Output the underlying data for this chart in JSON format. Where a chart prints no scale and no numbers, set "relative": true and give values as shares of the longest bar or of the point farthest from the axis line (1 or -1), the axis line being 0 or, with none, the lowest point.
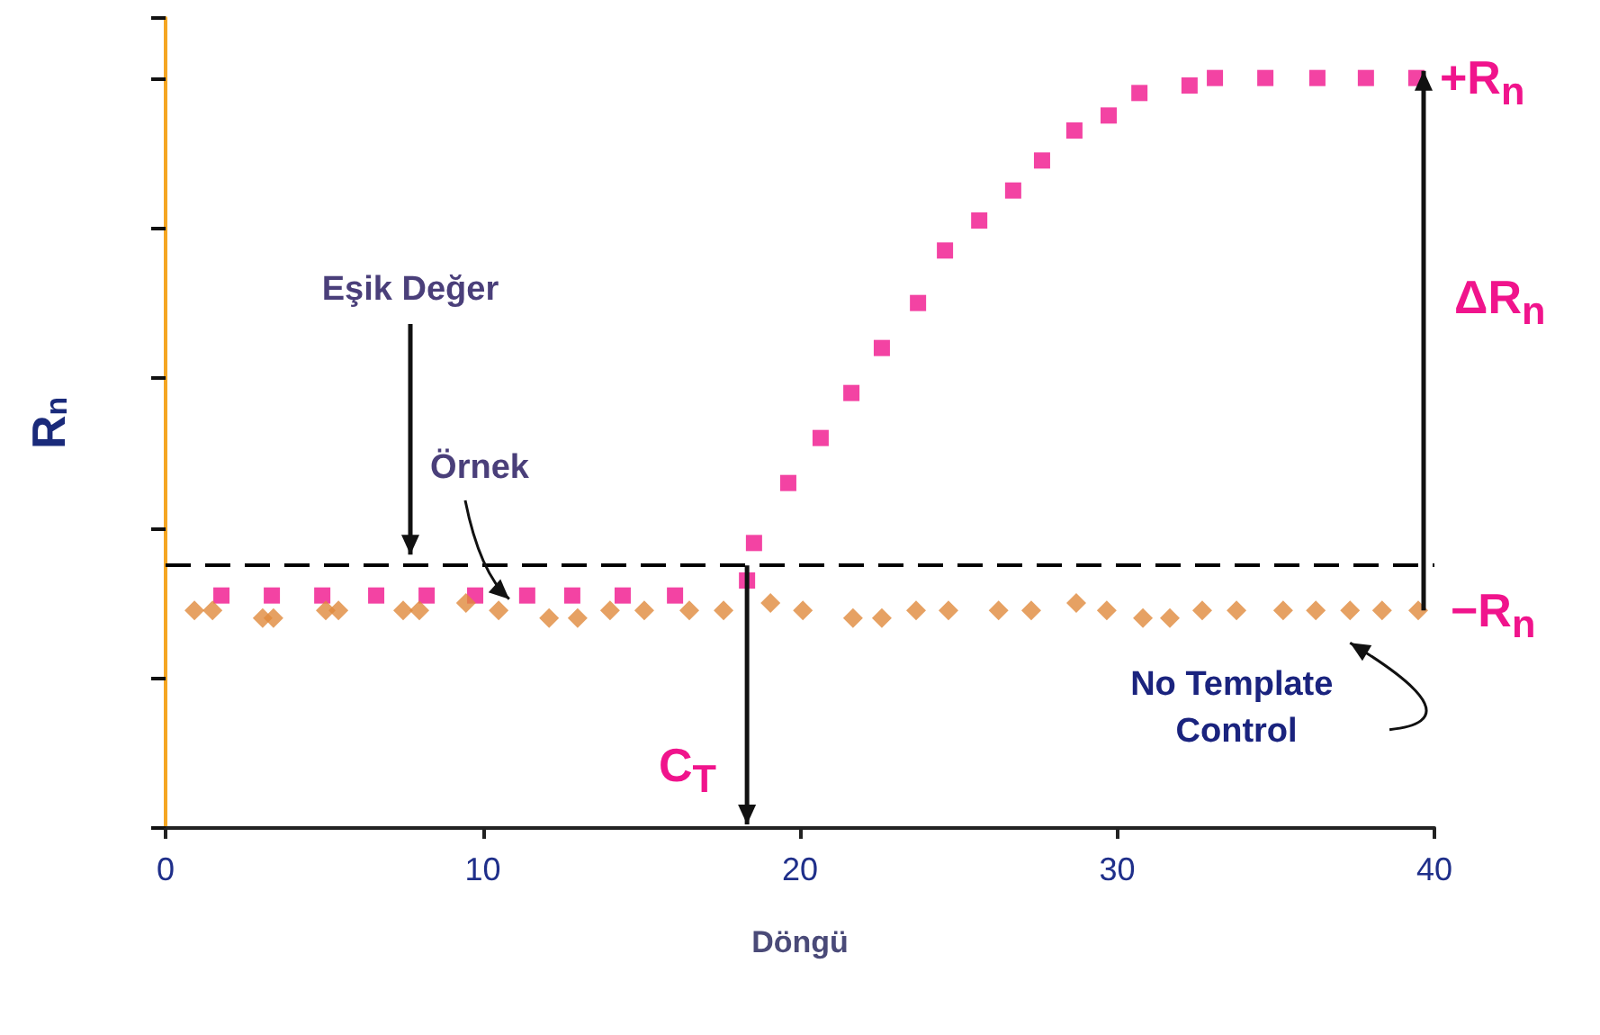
{
  "chart_data": {
    "type": "scatter",
    "relative": true,
    "xlabel": "Döngü",
    "ylabel": "R$_{n}$",
    "xlim": [
      0,
      40
    ],
    "xticks": [
      0,
      10,
      20,
      30,
      40
    ],
    "grid": false,
    "legend": false,
    "series": [
      {
        "name": "Örnek",
        "color": "#f0148c",
        "marker": "square",
        "x": [
          1.76,
          3.35,
          4.94,
          6.64,
          8.23,
          9.76,
          11.4,
          12.82,
          14.41,
          16.06,
          18.33,
          18.55,
          19.63,
          20.65,
          21.62,
          22.58,
          23.72,
          24.57,
          25.65,
          26.72,
          27.63,
          28.65,
          29.73,
          30.7,
          32.28,
          33.08,
          34.67,
          36.31,
          37.84,
          39.43
        ],
        "values": [
          0.31,
          0.31,
          0.31,
          0.31,
          0.31,
          0.31,
          0.31,
          0.31,
          0.31,
          0.31,
          0.33,
          0.38,
          0.46,
          0.52,
          0.58,
          0.64,
          0.7,
          0.77,
          0.81,
          0.85,
          0.89,
          0.93,
          0.95,
          0.98,
          0.99,
          1,
          1,
          1,
          1,
          1
        ]
      },
      {
        "name": "No Template Control",
        "color": "#e08a3c",
        "marker": "diamond",
        "x": [
          0.91,
          1.48,
          3.06,
          3.4,
          5.05,
          5.45,
          7.49,
          8.0,
          9.47,
          10.5,
          12.09,
          12.99,
          14.01,
          15.09,
          16.51,
          17.59,
          19.07,
          20.09,
          21.67,
          22.58,
          23.66,
          24.68,
          26.26,
          27.29,
          28.71,
          29.67,
          30.81,
          31.66,
          32.68,
          33.76,
          35.23,
          36.26,
          37.34,
          38.35,
          39.49
        ],
        "values": [
          0.29,
          0.29,
          0.28,
          0.28,
          0.29,
          0.29,
          0.29,
          0.29,
          0.3,
          0.29,
          0.28,
          0.28,
          0.29,
          0.29,
          0.29,
          0.29,
          0.3,
          0.29,
          0.28,
          0.28,
          0.29,
          0.29,
          0.29,
          0.29,
          0.3,
          0.29,
          0.28,
          0.28,
          0.29,
          0.29,
          0.29,
          0.29,
          0.29,
          0.29,
          0.29
        ]
      }
    ],
    "ref_lines": [
      {
        "axis": "y",
        "value": 0.35,
        "color": "#000000",
        "line_style": "dashed"
      }
    ],
    "annotations": [
      "Eşik Değer",
      "C$_{T}$",
      "+R$_{n}$",
      "ΔR$_{n}$",
      "−R$_{n}$"
    ]
  }
}
